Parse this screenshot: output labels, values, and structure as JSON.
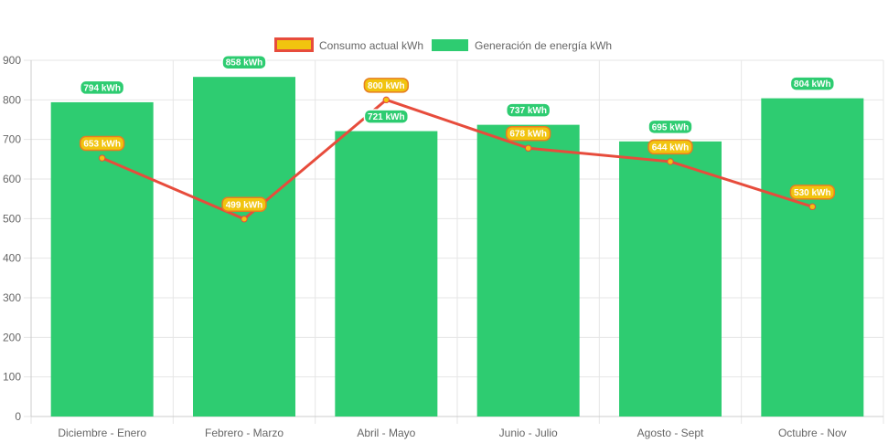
{
  "chart_data": {
    "type": "bar",
    "categories": [
      "Diciembre - Enero",
      "Febrero - Marzo",
      "Abril - Mayo",
      "Junio - Julio",
      "Agosto - Sept",
      "Octubre - Nov"
    ],
    "series": [
      {
        "name": "Consumo actual kWh",
        "type": "line",
        "values": [
          653,
          499,
          800,
          678,
          644,
          530
        ],
        "labels": [
          "653 kWh",
          "499 kWh",
          "800 kWh",
          "678 kWh",
          "644 kWh",
          "530 kWh"
        ],
        "color": "#e74c3c",
        "fill_color": "#f1c40f"
      },
      {
        "name": "Generación de energía kWh",
        "type": "bar",
        "values": [
          794,
          858,
          721,
          737,
          695,
          804
        ],
        "labels": [
          "794 kWh",
          "858 kWh",
          "721 kWh",
          "737 kWh",
          "695 kWh",
          "804 kWh"
        ],
        "color": "#2ecc71"
      }
    ],
    "yticks": [
      "0",
      "100",
      "200",
      "300",
      "400",
      "500",
      "600",
      "700",
      "800",
      "900"
    ],
    "ylim": [
      0,
      900
    ],
    "grid": true,
    "legend_position": "top",
    "title": "",
    "xlabel": "",
    "ylabel": ""
  }
}
